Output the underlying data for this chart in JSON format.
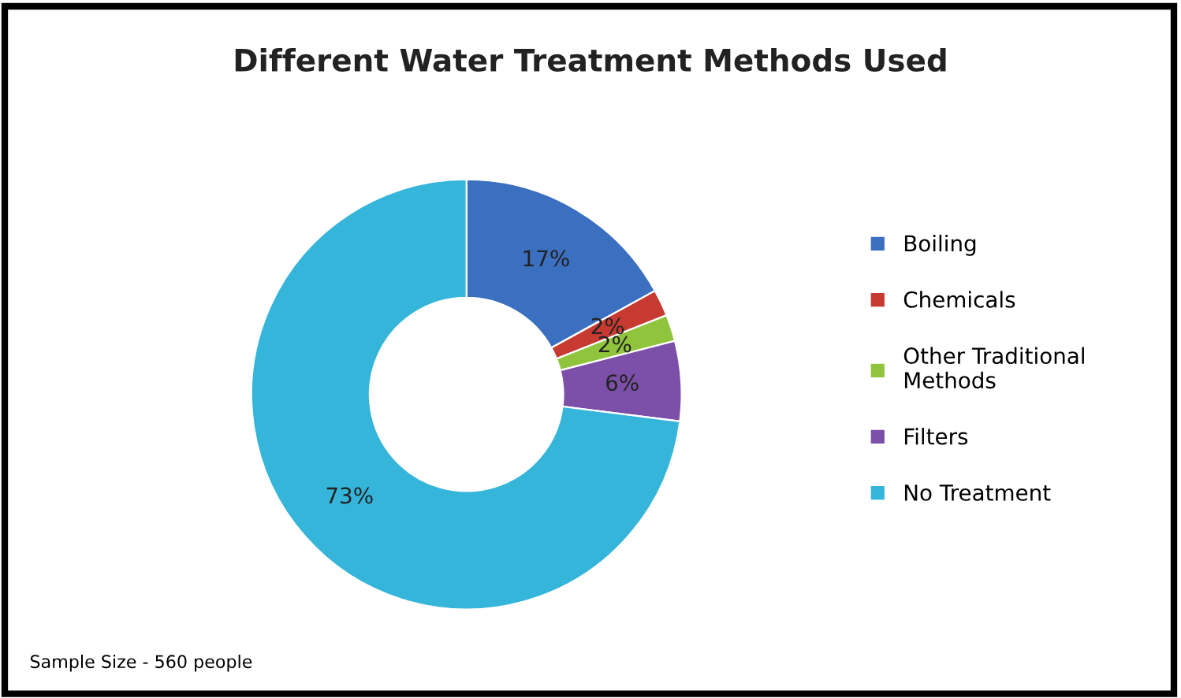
{
  "chart_data": {
    "type": "donut",
    "title": "Different Water Treatment Methods Used",
    "categories": [
      "Boiling",
      "Chemicals",
      "Other Traditional\nMethods",
      "Filters",
      "No Treatment"
    ],
    "values": [
      17,
      2,
      2,
      6,
      73
    ],
    "colors": [
      "#3b6fc0",
      "#c63a32",
      "#8fc43c",
      "#7c4fa8",
      "#35b5da"
    ],
    "value_labels": [
      "17%",
      "2%",
      "2%",
      "6%",
      "73%"
    ],
    "legend": "right",
    "annotations": [
      "Sample Size - 560 people"
    ]
  }
}
